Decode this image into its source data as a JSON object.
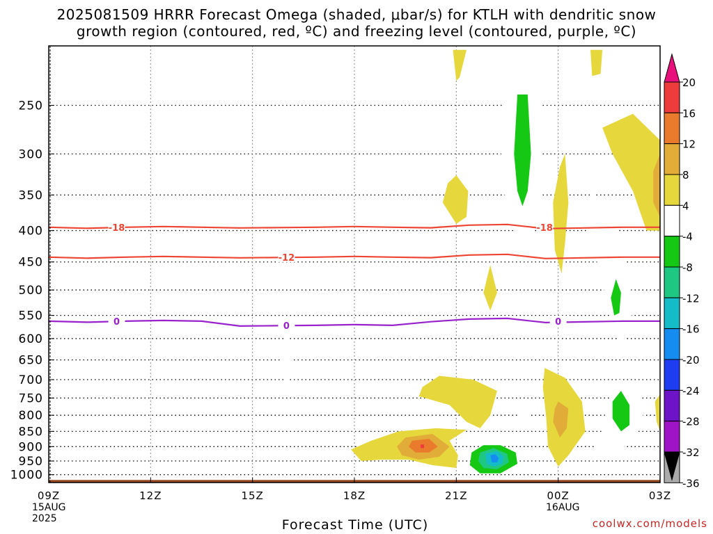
{
  "header": {
    "title_line1": "2025081509 HRRR Forecast Omega (shaded, μbar/s) for KTLH with dendritic snow",
    "title_line2": "growth region (contoured, red, ºC) and freezing level (contoured, purple, ºC)"
  },
  "footer": {
    "xlabel": "Forecast Time (UTC)",
    "credit": "coolwx.com/models",
    "date_left": [
      "15AUG",
      "2025"
    ],
    "date_mid": "16AUG"
  },
  "chart_data": {
    "type": "contour",
    "xlabel": "Forecast Time (UTC)",
    "ylabel": "",
    "x_ticks": [
      "09Z",
      "12Z",
      "15Z",
      "18Z",
      "21Z",
      "00Z",
      "03Z"
    ],
    "x_range_hours": [
      0,
      18
    ],
    "y_ticks": [
      250,
      300,
      350,
      400,
      450,
      500,
      550,
      600,
      650,
      700,
      750,
      800,
      850,
      900,
      950,
      1000
    ],
    "y_range_hPa": [
      200,
      1030
    ],
    "y_scale": "log-pressure",
    "grid": true,
    "colorbar": {
      "levels": [
        20,
        16,
        12,
        8,
        4,
        -4,
        -8,
        -12,
        -16,
        -20,
        -24,
        -28,
        -32,
        -36
      ],
      "colors": [
        "#e8107a",
        "#ee3c3c",
        "#ea7a2c",
        "#e2ac38",
        "#e6d83c",
        "#ffffff",
        "#14c814",
        "#1ec882",
        "#14bcc8",
        "#148cf0",
        "#1e3cf0",
        "#6e14c8",
        "#a014c8",
        "#aaaaaa",
        "#000000"
      ]
    },
    "contour_lines": [
      {
        "label": "-18",
        "color": "#ee4433",
        "pressure_hPa": 395
      },
      {
        "label": "-12",
        "color": "#ee4433",
        "pressure_hPa": 442
      },
      {
        "label": "0",
        "color": "#9922cc",
        "pressure_hPa": 562
      }
    ],
    "terrain_surface_hPa": 1020
  }
}
